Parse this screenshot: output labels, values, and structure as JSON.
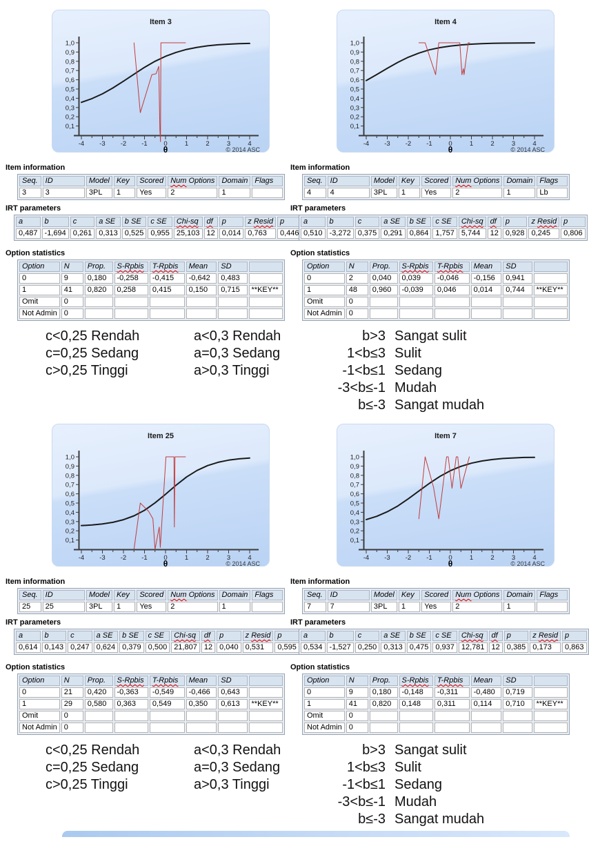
{
  "labels": {
    "item_information": "Item information",
    "irt_parameters": "IRT parameters",
    "option_statistics": "Option statistics"
  },
  "tables": {
    "item_information_headers": [
      "Seq.",
      "ID",
      "Model",
      "Key",
      "Scored",
      "Num Options",
      "Domain",
      "Flags"
    ],
    "irt_headers": [
      "a",
      "b",
      "c",
      "a SE",
      "b SE",
      "c SE",
      "Chi-sq",
      "df",
      "p",
      "z Resid",
      "p"
    ],
    "option_headers": [
      "Option",
      "N",
      "Prop.",
      "S-Rpbis",
      "T-Rpbis",
      "Mean",
      "SD",
      ""
    ]
  },
  "items": [
    {
      "title": "Item 3",
      "item_information_row": [
        "3",
        "3",
        "3PL",
        "1",
        "Yes",
        "2",
        "1",
        ""
      ],
      "irt_row": [
        "0,487",
        "-1,694",
        "0,261",
        "0,313",
        "0,525",
        "0,955",
        "25,103",
        "12",
        "0,014",
        "0,763",
        "0,446"
      ],
      "option_rows": [
        [
          "0",
          "9",
          "0,180",
          "-0,258",
          "-0,415",
          "-0,642",
          "0,483",
          ""
        ],
        [
          "1",
          "41",
          "0,820",
          "0,258",
          "0,415",
          "0,150",
          "0,715",
          "**KEY**"
        ],
        [
          "Omit",
          "0",
          "",
          "",
          "",
          "",
          "",
          ""
        ],
        [
          "Not Admin",
          "0",
          "",
          "",
          "",
          "",
          "",
          ""
        ]
      ]
    },
    {
      "title": "Item 4",
      "item_information_row": [
        "4",
        "4",
        "3PL",
        "1",
        "Yes",
        "2",
        "1",
        "Lb"
      ],
      "irt_row": [
        "0,510",
        "-3,272",
        "0,375",
        "0,291",
        "0,864",
        "1,757",
        "5,744",
        "12",
        "0,928",
        "0,245",
        "0,806"
      ],
      "option_rows": [
        [
          "0",
          "2",
          "0,040",
          "0,039",
          "-0,046",
          "-0,156",
          "0,941",
          ""
        ],
        [
          "1",
          "48",
          "0,960",
          "-0,039",
          "0,046",
          "0,014",
          "0,744",
          "**KEY**"
        ],
        [
          "Omit",
          "0",
          "",
          "",
          "",
          "",
          "",
          ""
        ],
        [
          "Not Admin",
          "0",
          "",
          "",
          "",
          "",
          "",
          ""
        ]
      ]
    },
    {
      "title": "Item 25",
      "item_information_row": [
        "25",
        "25",
        "3PL",
        "1",
        "Yes",
        "2",
        "1",
        ""
      ],
      "irt_row": [
        "0,614",
        "0,143",
        "0,247",
        "0,624",
        "0,379",
        "0,500",
        "21,807",
        "12",
        "0,040",
        "0,531",
        "0,595"
      ],
      "option_rows": [
        [
          "0",
          "21",
          "0,420",
          "-0,363",
          "-0,549",
          "-0,466",
          "0,643",
          ""
        ],
        [
          "1",
          "29",
          "0,580",
          "0,363",
          "0,549",
          "0,350",
          "0,613",
          "**KEY**"
        ],
        [
          "Omit",
          "0",
          "",
          "",
          "",
          "",
          "",
          ""
        ],
        [
          "Not Admin",
          "0",
          "",
          "",
          "",
          "",
          "",
          ""
        ]
      ]
    },
    {
      "title": "Item 7",
      "item_information_row": [
        "7",
        "7",
        "3PL",
        "1",
        "Yes",
        "2",
        "1",
        ""
      ],
      "irt_row": [
        "0,534",
        "-1,527",
        "0,250",
        "0,313",
        "0,475",
        "0,937",
        "12,781",
        "12",
        "0,385",
        "0,173",
        "0,863"
      ],
      "option_rows": [
        [
          "0",
          "9",
          "0,180",
          "-0,148",
          "-0,311",
          "-0,480",
          "0,719",
          ""
        ],
        [
          "1",
          "41",
          "0,820",
          "0,148",
          "0,311",
          "0,114",
          "0,710",
          "**KEY**"
        ],
        [
          "Omit",
          "0",
          "",
          "",
          "",
          "",
          "",
          ""
        ],
        [
          "Not Admin",
          "0",
          "",
          "",
          "",
          "",
          "",
          ""
        ]
      ]
    }
  ],
  "criteria": {
    "c": [
      "c<0,25 Rendah",
      "c=0,25 Sedang",
      "c>0,25 Tinggi"
    ],
    "a": [
      "a<0,3 Rendah",
      "a=0,3 Sedang",
      "a>0,3 Tinggi"
    ],
    "b": [
      {
        "cond": "b>3",
        "label": "Sangat sulit"
      },
      {
        "cond": "1<b≤3",
        "label": "Sulit"
      },
      {
        "cond": "-1<b≤1",
        "label": "Sedang"
      },
      {
        "cond": "-3<b≤-1",
        "label": "Mudah"
      },
      {
        "cond": "b≤-3",
        "label": "Sangat mudah"
      }
    ]
  },
  "chart_data": [
    {
      "type": "line",
      "title": "Item 3",
      "xlabel": "θ",
      "copyright": "© 2014 ASC",
      "xlim": [
        -4.3,
        4.4
      ],
      "ylim": [
        0,
        1.08
      ],
      "grid": false,
      "legend": "none",
      "x_ticks": [
        -4,
        -3,
        -2,
        -1,
        0,
        1,
        2,
        3,
        4
      ],
      "y_ticks": [
        0.1,
        0.2,
        0.3,
        0.4,
        0.5,
        0.6,
        0.7,
        0.8,
        0.9,
        1.0
      ],
      "model": "3PL",
      "params": {
        "a": 0.487,
        "b": -1.694,
        "c": 0.261
      },
      "series": [
        {
          "name": "item-characteristic-curve",
          "color": "#1a1a1a",
          "width": 2,
          "points": [
            [
              -4,
              0.356
            ],
            [
              -3.5,
              0.396
            ],
            [
              -3,
              0.448
            ],
            [
              -2.5,
              0.512
            ],
            [
              -2,
              0.584
            ],
            [
              -1.5,
              0.66
            ],
            [
              -1,
              0.734
            ],
            [
              -0.5,
              0.8
            ],
            [
              0,
              0.854
            ],
            [
              0.5,
              0.896
            ],
            [
              1,
              0.928
            ],
            [
              1.5,
              0.951
            ],
            [
              2,
              0.967
            ],
            [
              2.5,
              0.978
            ],
            [
              3,
              0.985
            ],
            [
              3.5,
              0.99
            ],
            [
              4,
              0.993
            ]
          ]
        },
        {
          "name": "observed-fit-line",
          "color": "#c23b3b",
          "width": 1,
          "points": [
            [
              -1.5,
              1.0
            ],
            [
              -1.2,
              0.245
            ],
            [
              -0.65,
              0.655
            ],
            [
              -0.45,
              0.665
            ],
            [
              -0.32,
              0.745
            ],
            [
              -0.27,
              0.06
            ],
            [
              -0.24,
              -0.07
            ],
            [
              -0.22,
              1.0
            ],
            [
              0.95,
              1.0
            ]
          ]
        }
      ]
    },
    {
      "type": "line",
      "title": "Item 4",
      "xlabel": "θ",
      "copyright": "© 2014 ASC",
      "xlim": [
        -4.3,
        4.4
      ],
      "ylim": [
        0,
        1.08
      ],
      "grid": false,
      "legend": "none",
      "x_ticks": [
        -4,
        -3,
        -2,
        -1,
        0,
        1,
        2,
        3,
        4
      ],
      "y_ticks": [
        0.1,
        0.2,
        0.3,
        0.4,
        0.5,
        0.6,
        0.7,
        0.8,
        0.9,
        1.0
      ],
      "model": "3PL",
      "params": {
        "a": 0.51,
        "b": -3.272,
        "c": 0.375
      },
      "series": [
        {
          "name": "item-characteristic-curve",
          "color": "#1a1a1a",
          "width": 2,
          "points": [
            [
              -4,
              0.592
            ],
            [
              -3.5,
              0.657
            ],
            [
              -3,
              0.724
            ],
            [
              -2.5,
              0.788
            ],
            [
              -2,
              0.844
            ],
            [
              -1.5,
              0.889
            ],
            [
              -1,
              0.924
            ],
            [
              -0.5,
              0.948
            ],
            [
              0,
              0.965
            ],
            [
              0.5,
              0.977
            ],
            [
              1,
              0.985
            ],
            [
              1.5,
              0.99
            ],
            [
              2,
              0.994
            ],
            [
              2.5,
              0.996
            ],
            [
              3,
              0.997
            ],
            [
              3.5,
              0.998
            ],
            [
              4,
              0.999
            ]
          ]
        },
        {
          "name": "observed-fit-line",
          "color": "#c23b3b",
          "width": 1,
          "points": [
            [
              -1.5,
              1.0
            ],
            [
              -1.2,
              1.0
            ],
            [
              -0.7,
              0.655
            ],
            [
              -0.55,
              1.0
            ],
            [
              0.45,
              1.0
            ],
            [
              0.55,
              0.655
            ],
            [
              0.62,
              0.72
            ],
            [
              0.65,
              0.655
            ],
            [
              0.85,
              1.0
            ],
            [
              0.92,
              1.0
            ]
          ]
        }
      ]
    },
    {
      "type": "line",
      "title": "Item 25",
      "xlabel": "θ",
      "copyright": "© 2014 ASC",
      "xlim": [
        -4.3,
        4.4
      ],
      "ylim": [
        0,
        1.08
      ],
      "grid": false,
      "legend": "none",
      "x_ticks": [
        -4,
        -3,
        -2,
        -1,
        0,
        1,
        2,
        3,
        4
      ],
      "y_ticks": [
        0.1,
        0.2,
        0.3,
        0.4,
        0.5,
        0.6,
        0.7,
        0.8,
        0.9,
        1.0
      ],
      "model": "3PL",
      "params": {
        "a": 0.614,
        "b": 0.143,
        "c": 0.247
      },
      "series": [
        {
          "name": "item-characteristic-curve",
          "color": "#1a1a1a",
          "width": 2,
          "points": [
            [
              -4,
              0.257
            ],
            [
              -3.5,
              0.263
            ],
            [
              -3,
              0.274
            ],
            [
              -2.5,
              0.292
            ],
            [
              -2,
              0.32
            ],
            [
              -1.5,
              0.362
            ],
            [
              -1,
              0.422
            ],
            [
              -0.5,
              0.502
            ],
            [
              0,
              0.595
            ],
            [
              0.5,
              0.693
            ],
            [
              1,
              0.782
            ],
            [
              1.5,
              0.853
            ],
            [
              2,
              0.905
            ],
            [
              2.5,
              0.941
            ],
            [
              3,
              0.964
            ],
            [
              3.5,
              0.978
            ],
            [
              4,
              0.987
            ]
          ]
        },
        {
          "name": "observed-fit-line",
          "color": "#c23b3b",
          "width": 1,
          "points": [
            [
              -1.5,
              0.0
            ],
            [
              -1.2,
              0.5
            ],
            [
              -0.8,
              0.41
            ],
            [
              -0.6,
              0.33
            ],
            [
              -0.5,
              0.0
            ],
            [
              -0.3,
              0.24
            ],
            [
              -0.25,
              0.02
            ],
            [
              -0.05,
              0.75
            ],
            [
              0.02,
              1.0
            ],
            [
              0.4,
              1.0
            ],
            [
              0.42,
              0.24
            ],
            [
              0.45,
              1.0
            ],
            [
              0.95,
              1.0
            ]
          ]
        }
      ]
    },
    {
      "type": "line",
      "title": "Item 7",
      "xlabel": "θ",
      "copyright": "© 2014 ASC",
      "xlim": [
        -4.3,
        4.4
      ],
      "ylim": [
        0,
        1.08
      ],
      "grid": false,
      "legend": "none",
      "x_ticks": [
        -4,
        -3,
        -2,
        -1,
        0,
        1,
        2,
        3,
        4
      ],
      "y_ticks": [
        0.1,
        0.2,
        0.3,
        0.4,
        0.5,
        0.6,
        0.7,
        0.8,
        0.9,
        1.0
      ],
      "model": "3PL",
      "params": {
        "a": 0.534,
        "b": -1.527,
        "c": 0.25
      },
      "series": [
        {
          "name": "item-characteristic-curve",
          "color": "#1a1a1a",
          "width": 2,
          "points": [
            [
              -4,
              0.322
            ],
            [
              -3.5,
              0.357
            ],
            [
              -3,
              0.406
            ],
            [
              -2.5,
              0.469
            ],
            [
              -2,
              0.546
            ],
            [
              -1.5,
              0.63
            ],
            [
              -1,
              0.713
            ],
            [
              -0.5,
              0.788
            ],
            [
              0,
              0.85
            ],
            [
              0.5,
              0.897
            ],
            [
              1,
              0.931
            ],
            [
              1.5,
              0.955
            ],
            [
              2,
              0.971
            ],
            [
              2.5,
              0.982
            ],
            [
              3,
              0.988
            ],
            [
              3.5,
              0.993
            ],
            [
              4,
              0.995
            ]
          ]
        },
        {
          "name": "observed-fit-line",
          "color": "#c23b3b",
          "width": 1,
          "points": [
            [
              -1.5,
              0.33
            ],
            [
              -1.2,
              1.0
            ],
            [
              -0.8,
              0.67
            ],
            [
              -0.55,
              0.33
            ],
            [
              -0.18,
              1.0
            ],
            [
              -0.1,
              1.0
            ],
            [
              0.08,
              0.66
            ],
            [
              0.28,
              1.0
            ],
            [
              0.35,
              1.0
            ],
            [
              0.5,
              0.66
            ],
            [
              0.9,
              1.0
            ]
          ]
        }
      ]
    }
  ]
}
